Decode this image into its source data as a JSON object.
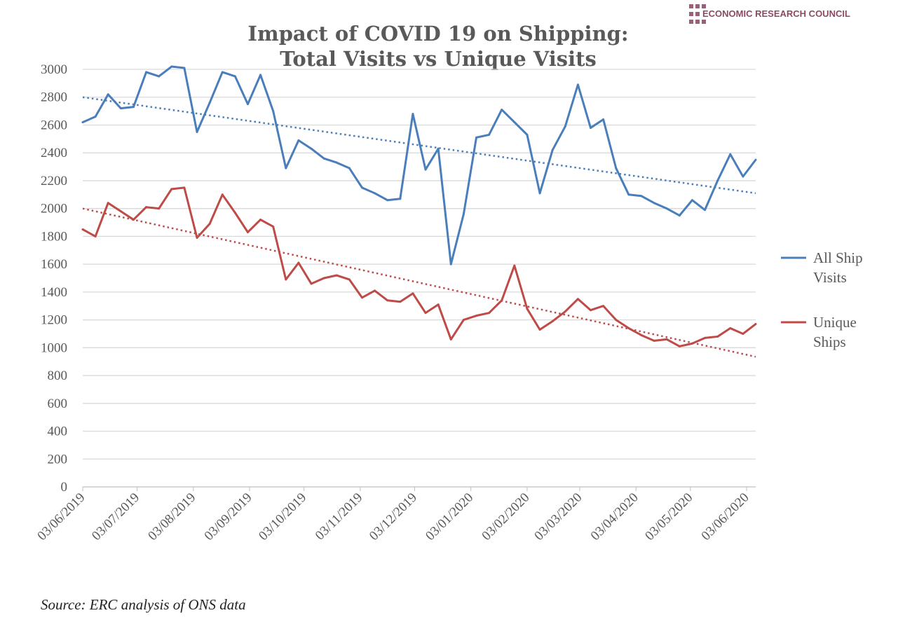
{
  "logo": {
    "text": "ECONOMIC RESEARCH COUNCIL",
    "color": "#9b6079"
  },
  "source": "Source: ERC analysis of ONS data",
  "chart_data": {
    "type": "line",
    "title": [
      "Impact of COVID 19 on Shipping:",
      "Total Visits vs Unique  Visits"
    ],
    "xlabel": "",
    "ylabel": "",
    "ylim": [
      0,
      3000
    ],
    "yticks": [
      0,
      200,
      400,
      600,
      800,
      1000,
      1200,
      1400,
      1600,
      1800,
      2000,
      2200,
      2400,
      2600,
      2800,
      3000
    ],
    "xlim": [
      "2019-06-03",
      "2020-06-08"
    ],
    "xtick_dates": [
      "2019-06-03",
      "2019-07-03",
      "2019-08-03",
      "2019-09-03",
      "2019-10-03",
      "2019-11-03",
      "2019-12-03",
      "2020-01-03",
      "2020-02-03",
      "2020-03-03",
      "2020-04-03",
      "2020-05-03",
      "2020-06-03"
    ],
    "xtick_labels": [
      "03/06/2019",
      "03/07/2019",
      "03/08/2019",
      "03/09/2019",
      "03/10/2019",
      "03/11/2019",
      "03/12/2019",
      "03/01/2020",
      "03/02/2020",
      "03/03/2020",
      "03/04/2020",
      "03/05/2020",
      "03/06/2020"
    ],
    "x_start": "2019-06-03",
    "x_interval": "weekly",
    "grid": "horizontal",
    "legend_position": "right",
    "series": [
      {
        "name": "All Ship Visits",
        "color": "#4a7ebb",
        "values": [
          2620,
          2660,
          2820,
          2720,
          2730,
          2980,
          2950,
          3020,
          3010,
          2550,
          2760,
          2980,
          2950,
          2750,
          2960,
          2700,
          2290,
          2490,
          2430,
          2360,
          2330,
          2290,
          2150,
          2110,
          2060,
          2070,
          2680,
          2280,
          2430,
          1600,
          1960,
          2510,
          2530,
          2710,
          2620,
          2530,
          2110,
          2420,
          2590,
          2890,
          2580,
          2640,
          2290,
          2100,
          2090,
          2040,
          2000,
          1950,
          2060,
          1990,
          2200,
          2390,
          2230,
          2350
        ],
        "trendline": {
          "type": "linear",
          "start": 2800,
          "end": 2110
        }
      },
      {
        "name": "Unique Ships",
        "color": "#be4b48",
        "values": [
          1850,
          1800,
          2040,
          1980,
          1920,
          2010,
          2000,
          2140,
          2150,
          1790,
          1890,
          2100,
          1970,
          1830,
          1920,
          1870,
          1490,
          1610,
          1460,
          1500,
          1520,
          1490,
          1360,
          1410,
          1340,
          1330,
          1390,
          1250,
          1310,
          1060,
          1200,
          1230,
          1250,
          1340,
          1590,
          1280,
          1130,
          1190,
          1260,
          1350,
          1270,
          1300,
          1200,
          1140,
          1090,
          1050,
          1060,
          1010,
          1030,
          1070,
          1080,
          1140,
          1100,
          1170
        ],
        "trendline": {
          "type": "linear",
          "start": 2000,
          "end": 935
        }
      }
    ],
    "legend": [
      [
        "All Ship",
        "Visits"
      ],
      [
        "Unique",
        "Ships"
      ]
    ]
  }
}
